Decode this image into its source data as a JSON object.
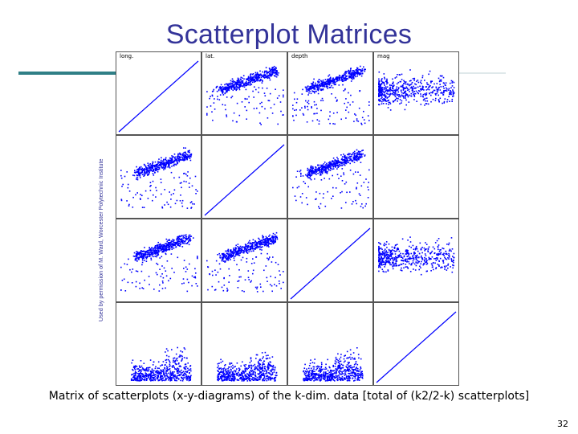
{
  "slide": {
    "title": "Scatterplot Matrices",
    "credit": "Used by permission of M. Ward, Worcester Polytechnic Institute",
    "caption": "Matrix of scatterplots (x-y-diagrams) of the k-dim. data [total of (k2/2-k) scatterplots]",
    "page_number": "32",
    "accent_color": "#333399",
    "rule_color": "#2f7f86"
  },
  "chart_data": {
    "type": "scatter",
    "variables": [
      "long.",
      "lat.",
      "depth",
      "mag"
    ],
    "grid_size": [
      4,
      4
    ],
    "point_color": "#0000ff",
    "diagonal": "identity-line"
  }
}
